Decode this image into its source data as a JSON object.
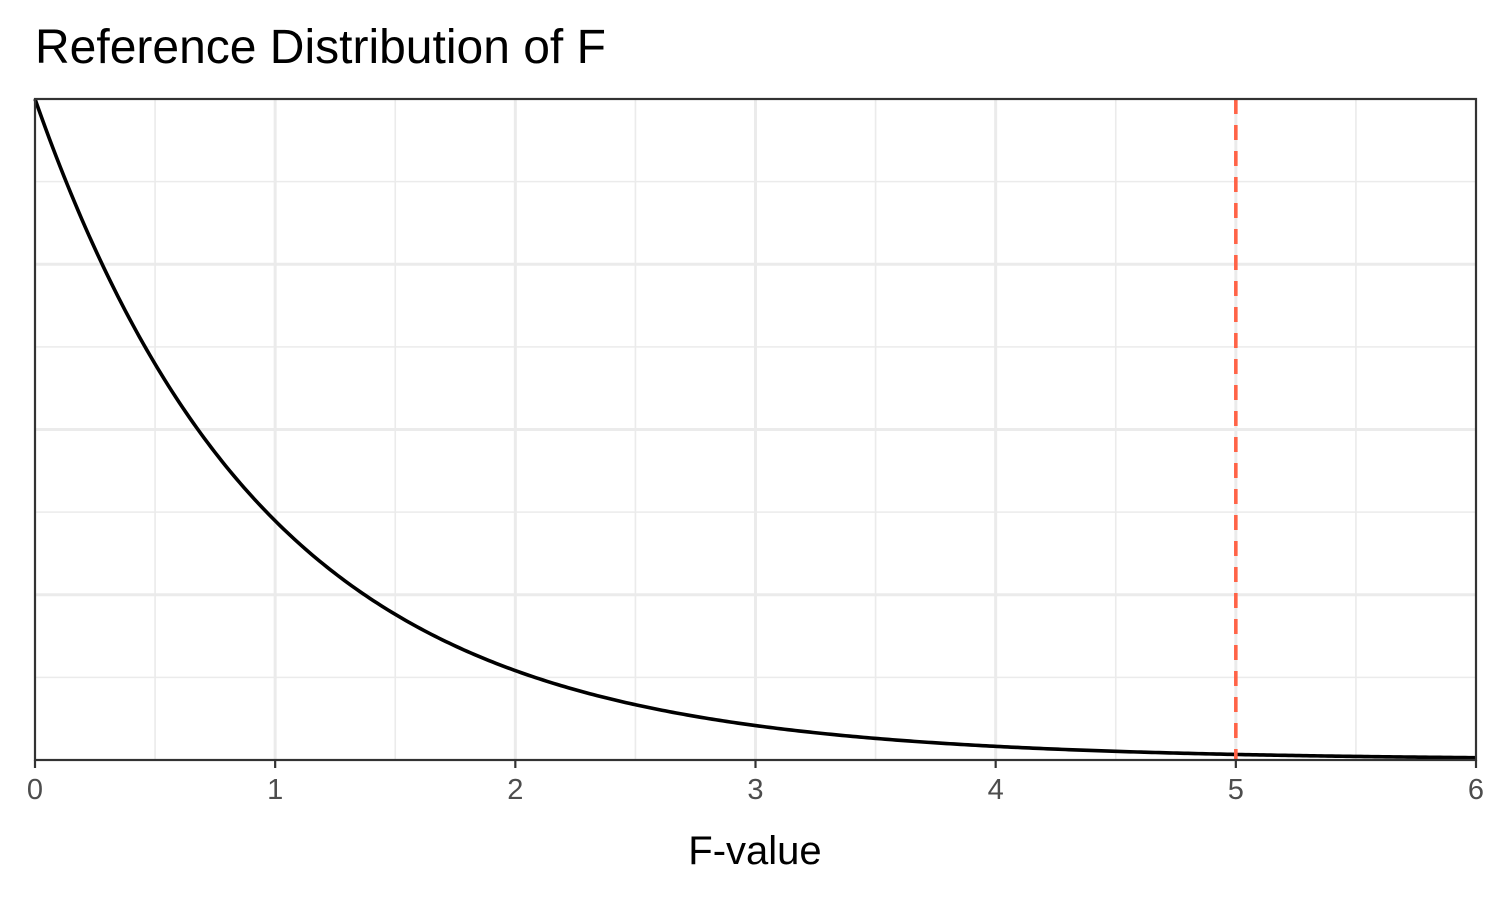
{
  "chart_data": {
    "type": "line",
    "title": "Reference Distribution of F",
    "xlabel": "F-value",
    "ylabel": "",
    "xlim": [
      0,
      6
    ],
    "ylim": [
      0,
      1
    ],
    "x_ticks": [
      0,
      1,
      2,
      3,
      4,
      5,
      6
    ],
    "x_tick_labels": [
      "0",
      "1",
      "2",
      "3",
      "4",
      "5",
      "6"
    ],
    "y_tick_labels_shown": false,
    "grid": true,
    "series": [
      {
        "distribution": "F",
        "df1": 2,
        "df2": 60,
        "color": "#000000"
      }
    ],
    "reference_line": {
      "x": 5,
      "style": "dashed",
      "color": "#ff6347"
    }
  }
}
